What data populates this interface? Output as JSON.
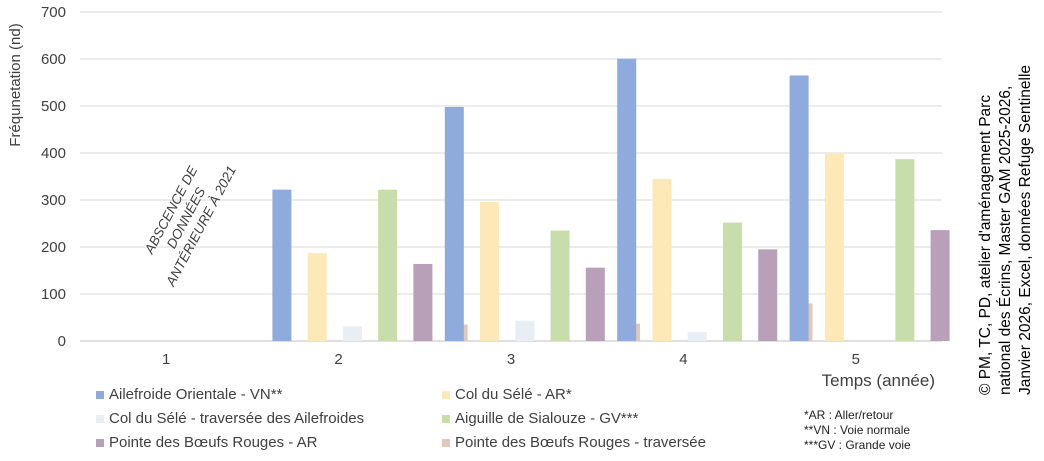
{
  "chart_data": {
    "type": "bar",
    "ylabel": "Fréqunetation (nd)",
    "xlabel": "Temps (année)",
    "ylim": [
      0,
      700
    ],
    "yticks": [
      "0",
      "100",
      "200",
      "300",
      "400",
      "500",
      "600",
      "700"
    ],
    "categories": [
      "1",
      "2",
      "3",
      "4",
      "5"
    ],
    "grid": "horizontal",
    "legend_placement": "bottom",
    "series": [
      {
        "name": "Ailefroide Orientale - VN**",
        "color": "#8faadc",
        "values": [
          null,
          322,
          498,
          601,
          565
        ]
      },
      {
        "name": "Col du Sélé - AR*",
        "color": "#fde9b8",
        "values": [
          null,
          187,
          296,
          345,
          398
        ]
      },
      {
        "name": "Col du Sélé - traversée des Ailefroides",
        "color": "#e9eef4",
        "values": [
          null,
          31,
          43,
          19,
          null
        ]
      },
      {
        "name": "Aiguille de Sialouze - GV***",
        "color": "#c8deaa",
        "values": [
          null,
          322,
          235,
          252,
          387
        ]
      },
      {
        "name": "Pointe des Bœufs Rouges - AR",
        "color": "#b9a0b9",
        "values": [
          null,
          164,
          156,
          195,
          236
        ]
      },
      {
        "name": "Pointe des Bœufs Rouges - traversée",
        "color": "#dfc8b8",
        "values": [
          null,
          35,
          37,
          80,
          41
        ]
      }
    ],
    "annotation": {
      "lines": [
        "ABSCENCE DE",
        "DONNÉES",
        "ANTÉRIEURE À 2021"
      ],
      "category": "1"
    }
  },
  "notes": [
    "*AR : Aller/retour",
    "**VN : Voie normale",
    "***GV : Grande voie"
  ],
  "credit": [
    "© PM, TC, PD, atelier d'aménagement Parc",
    "national des Écrins, Master GAM 2025-2026,",
    "Janvier 2026, Excel, données Refuge Sentinelle"
  ]
}
